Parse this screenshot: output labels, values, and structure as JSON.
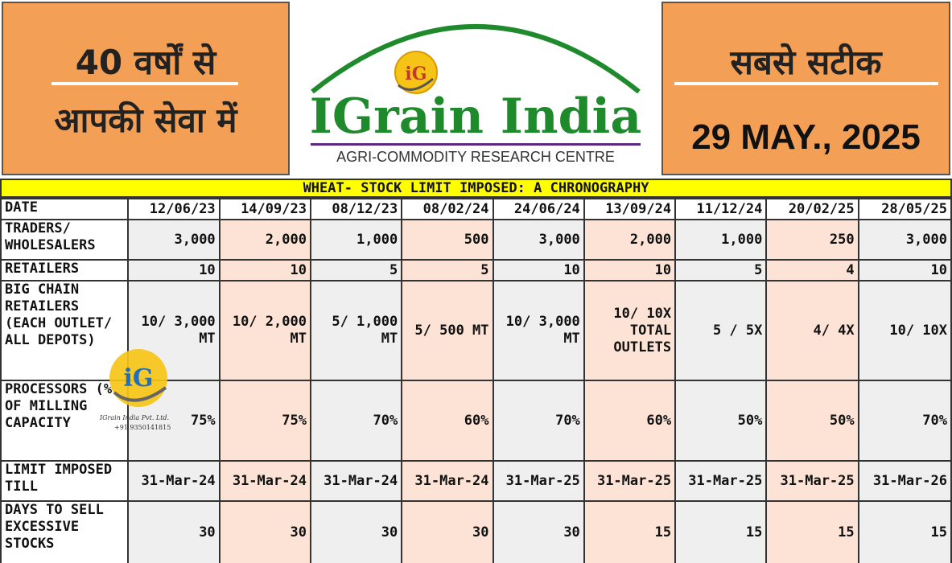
{
  "header": {
    "left_line1": "40 वर्षों से",
    "left_line2": "आपकी सेवा में",
    "right_line1": "सबसे सटीक",
    "date": "29 MAY., 2025",
    "brand": "IGrain India",
    "tagline": "AGRI-COMMODITY RESEARCH CENTRE",
    "logo_letters": "iG"
  },
  "table": {
    "title": "WHEAT- STOCK LIMIT IMPOSED: A CHRONOGRAPHY",
    "date_label": "DATE",
    "dates": [
      "12/06/23",
      "14/09/23",
      "08/12/23",
      "08/02/24",
      "24/06/24",
      "13/09/24",
      "11/12/24",
      "20/02/25",
      "28/05/25"
    ],
    "rows": [
      {
        "label": "TRADERS/ WHOLESALERS",
        "values": [
          "3,000",
          "2,000",
          "1,000",
          "500",
          "3,000",
          "2,000",
          "1,000",
          "250",
          "3,000"
        ]
      },
      {
        "label": "RETAILERS",
        "values": [
          "10",
          "10",
          "5",
          "5",
          "10",
          "10",
          "5",
          "4",
          "10"
        ]
      },
      {
        "label": "BIG CHAIN RETAILERS (EACH OUTLET/ ALL DEPOTS)",
        "values": [
          "10/ 3,000 MT",
          "10/ 2,000 MT",
          "5/ 1,000 MT",
          "5/ 500 MT",
          "10/ 3,000 MT",
          "10/ 10X TOTAL OUTLETS",
          "5 / 5X",
          "4/ 4X",
          "10/ 10X"
        ]
      },
      {
        "label": "PROCESSORS (% OF MILLING CAPACITY",
        "values": [
          "75%",
          "75%",
          "70%",
          "60%",
          "70%",
          "60%",
          "50%",
          "50%",
          "70%"
        ]
      },
      {
        "label": "LIMIT IMPOSED TILL",
        "values": [
          "31-Mar-24",
          "31-Mar-24",
          "31-Mar-24",
          "31-Mar-24",
          "31-Mar-25",
          "31-Mar-25",
          "31-Mar-25",
          "31-Mar-25",
          "31-Mar-26"
        ]
      },
      {
        "label": "DAYS TO SELL EXCESSIVE STOCKS",
        "values": [
          "30",
          "30",
          "30",
          "30",
          "30",
          "15",
          "15",
          "15",
          "15"
        ]
      }
    ]
  },
  "watermark": {
    "letters": "iG",
    "company": "IGrain India Pvt. Ltd.",
    "phone": "+91 9350141815"
  },
  "colors": {
    "orange_panel": "#f3a056",
    "title_bar": "#ffff00",
    "cell_grey": "#efefef",
    "cell_peach": "#fce3d6",
    "brand_green": "#1e8a2c",
    "logo_gold": "#f6c417"
  }
}
